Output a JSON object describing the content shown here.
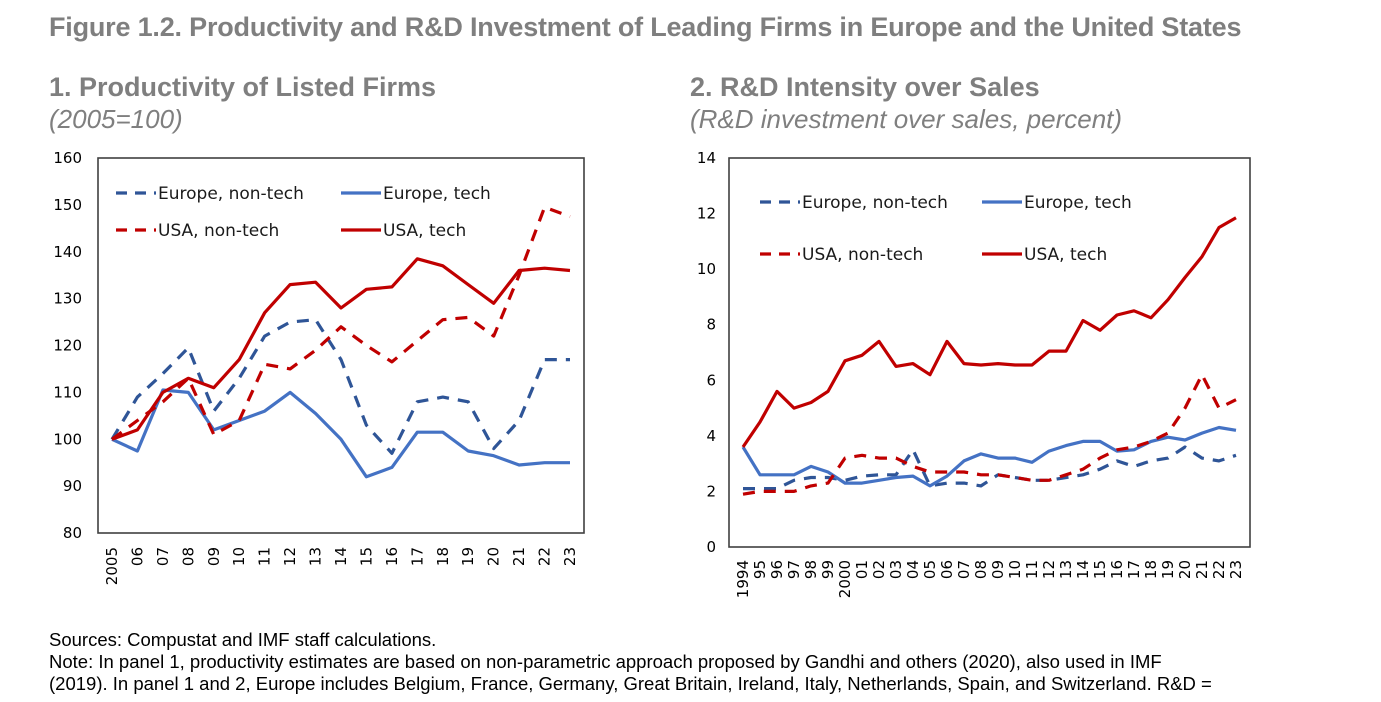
{
  "figure": {
    "title": "Figure 1.2. Productivity and R&D Investment of Leading Firms in Europe and the United States"
  },
  "panels": [
    {
      "title": "1. Productivity of Listed Firms",
      "subtitle": "(2005=100)"
    },
    {
      "title": "2. R&D Intensity over Sales",
      "subtitle": "(R&D investment over sales, percent)"
    }
  ],
  "notes": {
    "sources": "Sources: Compustat and IMF staff calculations.",
    "line1": "Note: In panel 1, productivity estimates are based on non-parametric approach proposed by Gandhi and others (2020), also used in IMF",
    "line2": "(2019). In panel 1 and 2, Europe includes Belgium, France, Germany, Great Britain, Ireland, Italy, Netherlands, Spain, and Switzerland. R&D ="
  },
  "colors": {
    "europe": "#4472c4",
    "europe_dash": "#2f5597",
    "usa": "#c00000",
    "title_gray": "#7f7f7f"
  },
  "chart_data": [
    {
      "type": "line",
      "title": "1. Productivity of Listed Firms",
      "subtitle": "(2005=100)",
      "xlabel": "",
      "ylabel": "",
      "x": [
        "2005",
        "06",
        "07",
        "08",
        "09",
        "10",
        "11",
        "12",
        "13",
        "14",
        "15",
        "16",
        "17",
        "18",
        "19",
        "20",
        "21",
        "22",
        "23"
      ],
      "ylim": [
        80,
        160
      ],
      "yticks": [
        80,
        90,
        100,
        110,
        120,
        130,
        140,
        150,
        160
      ],
      "grid": false,
      "legend": "top-left",
      "series": [
        {
          "name": "Europe, non-tech",
          "style": "dashed",
          "color": "#2f5597",
          "values": [
            100,
            109,
            114,
            119.5,
            106,
            113,
            122,
            125,
            125.5,
            117,
            103,
            97,
            108,
            109,
            108,
            98,
            104,
            117,
            117
          ]
        },
        {
          "name": "Europe, tech",
          "style": "solid",
          "color": "#4472c4",
          "values": [
            100,
            97.5,
            110.5,
            110,
            102,
            104,
            106,
            110,
            105.5,
            100,
            92,
            94,
            101.5,
            101.5,
            97.5,
            96.5,
            94.5,
            95,
            95
          ]
        },
        {
          "name": "USA, non-tech",
          "style": "dashed",
          "color": "#c00000",
          "values": [
            100,
            104,
            108,
            113,
            101,
            104,
            116,
            115,
            119,
            124,
            120,
            116.5,
            121,
            125.5,
            126,
            122,
            135,
            149.5,
            147.5
          ]
        },
        {
          "name": "USA, tech",
          "style": "solid",
          "color": "#c00000",
          "values": [
            100,
            102,
            110,
            113,
            111,
            117,
            127,
            133,
            133.5,
            128,
            132,
            132.5,
            138.5,
            137,
            133,
            129,
            136,
            136.5,
            136
          ]
        }
      ]
    },
    {
      "type": "line",
      "title": "2. R&D Intensity over Sales",
      "subtitle": "(R&D investment over sales, percent)",
      "xlabel": "",
      "ylabel": "",
      "x": [
        "1994",
        "95",
        "96",
        "97",
        "98",
        "99",
        "2000",
        "01",
        "02",
        "03",
        "04",
        "05",
        "06",
        "07",
        "08",
        "09",
        "10",
        "11",
        "12",
        "13",
        "14",
        "15",
        "16",
        "17",
        "18",
        "19",
        "20",
        "21",
        "22",
        "23"
      ],
      "ylim": [
        0,
        14
      ],
      "yticks": [
        0,
        2,
        4,
        6,
        8,
        10,
        12,
        14
      ],
      "grid": false,
      "legend": "top-left",
      "series": [
        {
          "name": "Europe, non-tech",
          "style": "dashed",
          "color": "#2f5597",
          "values": [
            2.1,
            2.1,
            2.1,
            2.4,
            2.5,
            2.5,
            2.4,
            2.55,
            2.6,
            2.6,
            3.5,
            2.2,
            2.3,
            2.3,
            2.2,
            2.6,
            2.5,
            2.4,
            2.4,
            2.5,
            2.6,
            2.8,
            3.1,
            2.9,
            3.1,
            3.2,
            3.6,
            3.2,
            3.1,
            3.3
          ]
        },
        {
          "name": "Europe, tech",
          "style": "solid",
          "color": "#4472c4",
          "values": [
            3.6,
            2.6,
            2.6,
            2.6,
            2.9,
            2.7,
            2.3,
            2.3,
            2.4,
            2.5,
            2.55,
            2.2,
            2.55,
            3.1,
            3.35,
            3.2,
            3.2,
            3.05,
            3.45,
            3.65,
            3.8,
            3.8,
            3.45,
            3.5,
            3.8,
            3.95,
            3.85,
            4.1,
            4.3,
            4.2
          ]
        },
        {
          "name": "USA, non-tech",
          "style": "dashed",
          "color": "#c00000",
          "values": [
            1.9,
            2.0,
            2.0,
            2.0,
            2.2,
            2.3,
            3.2,
            3.3,
            3.2,
            3.2,
            2.9,
            2.7,
            2.7,
            2.7,
            2.6,
            2.6,
            2.5,
            2.4,
            2.4,
            2.6,
            2.8,
            3.2,
            3.5,
            3.6,
            3.8,
            4.1,
            5.0,
            6.2,
            5.0,
            5.3
          ]
        },
        {
          "name": "USA, tech",
          "style": "solid",
          "color": "#c00000",
          "values": [
            3.6,
            4.5,
            5.6,
            5.0,
            5.2,
            5.6,
            6.7,
            6.9,
            7.4,
            6.5,
            6.6,
            6.2,
            7.4,
            6.6,
            6.55,
            6.6,
            6.55,
            6.55,
            7.05,
            7.05,
            8.15,
            7.8,
            8.35,
            8.5,
            8.25,
            8.9,
            9.7,
            10.45,
            11.5,
            11.85
          ]
        }
      ]
    }
  ]
}
